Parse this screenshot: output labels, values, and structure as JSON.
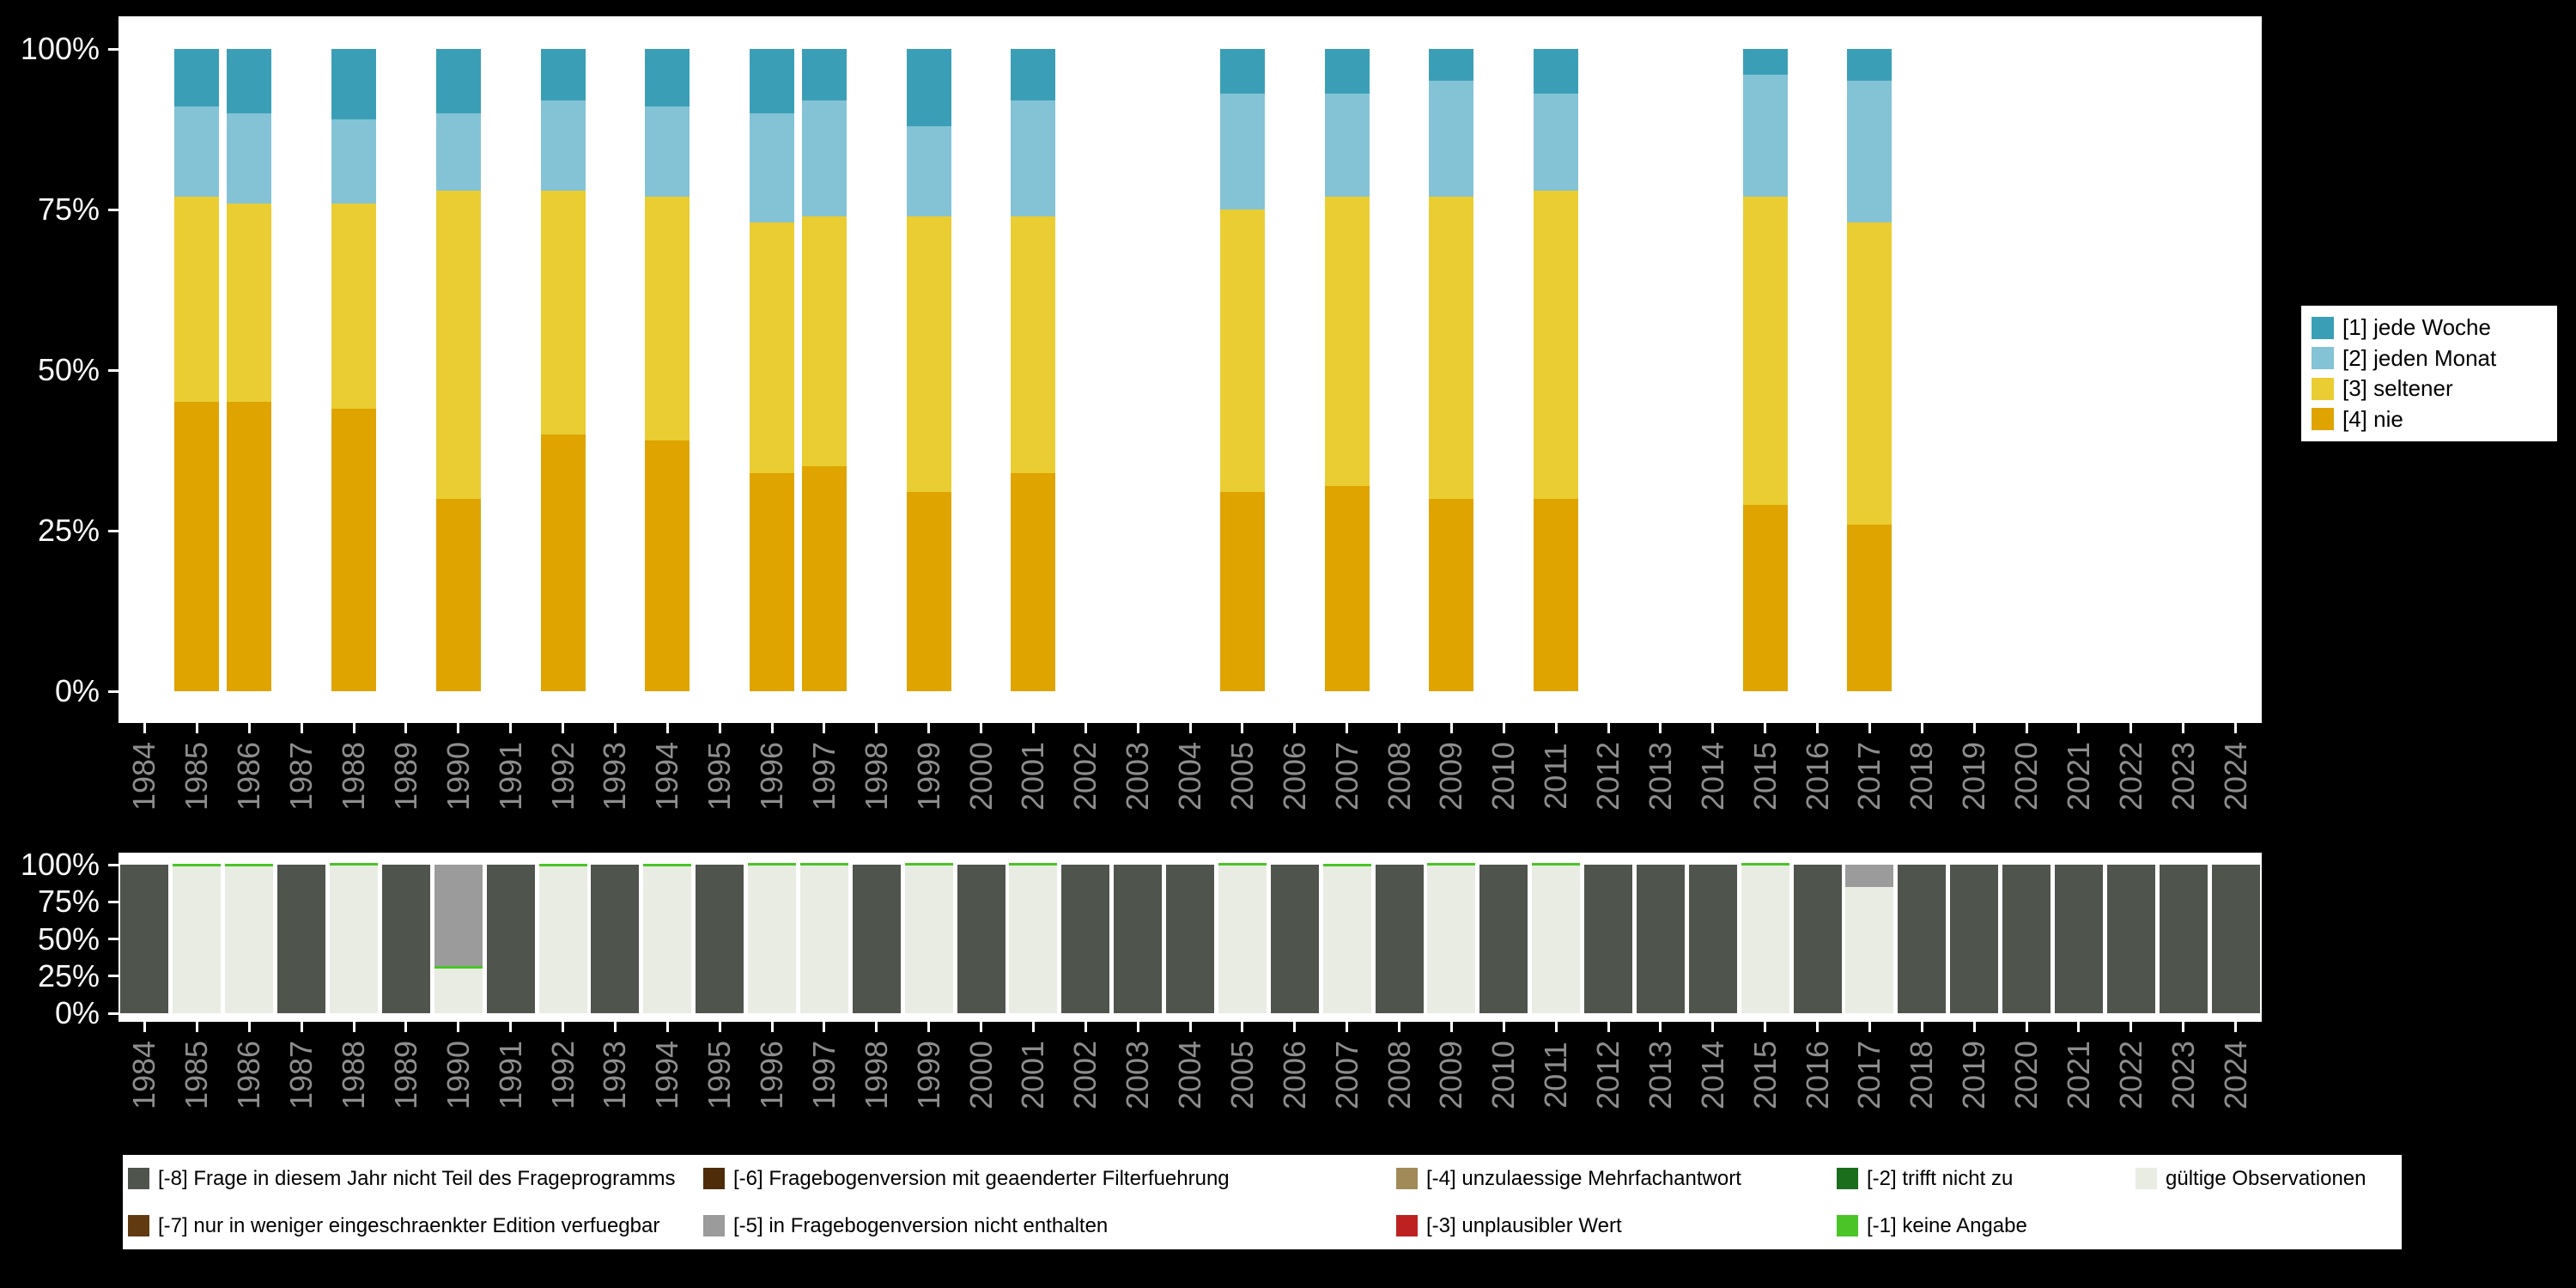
{
  "page": {
    "background": "#000000",
    "plot_background": "#ffffff"
  },
  "chart_data": [
    {
      "id": "frequency",
      "type": "bar",
      "stacked": true,
      "unit": "percent",
      "title": "",
      "categories": [
        "1984",
        "1985",
        "1986",
        "1987",
        "1988",
        "1989",
        "1990",
        "1991",
        "1992",
        "1993",
        "1994",
        "1995",
        "1996",
        "1997",
        "1998",
        "1999",
        "2000",
        "2001",
        "2002",
        "2003",
        "2004",
        "2005",
        "2006",
        "2007",
        "2008",
        "2009",
        "2010",
        "2011",
        "2012",
        "2013",
        "2014",
        "2015",
        "2016",
        "2017",
        "2018",
        "2019",
        "2020",
        "2021",
        "2022",
        "2023",
        "2024"
      ],
      "y_ticks": [
        0,
        25,
        50,
        75,
        100
      ],
      "y_tick_labels": [
        "0%",
        "25%",
        "50%",
        "75%",
        "100%"
      ],
      "ylim": [
        0,
        100
      ],
      "grid": false,
      "series": [
        {
          "name": "[4] nie",
          "color": "#dfa400",
          "values": {
            "1985": 45,
            "1986": 45,
            "1988": 44,
            "1990": 30,
            "1992": 40,
            "1994": 39,
            "1996": 34,
            "1997": 35,
            "1999": 31,
            "2001": 34,
            "2005": 31,
            "2007": 32,
            "2009": 30,
            "2011": 30,
            "2015": 29,
            "2017": 26
          }
        },
        {
          "name": "[3] seltener",
          "color": "#e9cd33",
          "values": {
            "1985": 32,
            "1986": 31,
            "1988": 32,
            "1990": 48,
            "1992": 38,
            "1994": 38,
            "1996": 39,
            "1997": 39,
            "1999": 43,
            "2001": 40,
            "2005": 44,
            "2007": 45,
            "2009": 47,
            "2011": 48,
            "2015": 48,
            "2017": 47
          }
        },
        {
          "name": "[2] jeden Monat",
          "color": "#83c3d5",
          "values": {
            "1985": 14,
            "1986": 14,
            "1988": 13,
            "1990": 12,
            "1992": 14,
            "1994": 14,
            "1996": 17,
            "1997": 18,
            "1999": 14,
            "2001": 18,
            "2005": 18,
            "2007": 16,
            "2009": 18,
            "2011": 15,
            "2015": 19,
            "2017": 22
          }
        },
        {
          "name": "[1] jede Woche",
          "color": "#3a9fb6",
          "values": {
            "1985": 9,
            "1986": 10,
            "1988": 11,
            "1990": 10,
            "1992": 8,
            "1994": 9,
            "1996": 10,
            "1997": 8,
            "1999": 12,
            "2001": 8,
            "2005": 7,
            "2007": 7,
            "2009": 5,
            "2011": 7,
            "2015": 4,
            "2017": 5
          }
        }
      ],
      "legend": {
        "position": "right",
        "items": [
          "[1] jede Woche",
          "[2] jeden Monat",
          "[3] seltener",
          "[4] nie"
        ]
      }
    },
    {
      "id": "missings",
      "type": "bar",
      "stacked": true,
      "unit": "percent",
      "title": "",
      "categories": [
        "1984",
        "1985",
        "1986",
        "1987",
        "1988",
        "1989",
        "1990",
        "1991",
        "1992",
        "1993",
        "1994",
        "1995",
        "1996",
        "1997",
        "1998",
        "1999",
        "2000",
        "2001",
        "2002",
        "2003",
        "2004",
        "2005",
        "2006",
        "2007",
        "2008",
        "2009",
        "2010",
        "2011",
        "2012",
        "2013",
        "2014",
        "2015",
        "2016",
        "2017",
        "2018",
        "2019",
        "2020",
        "2021",
        "2022",
        "2023",
        "2024"
      ],
      "y_ticks": [
        0,
        25,
        50,
        75,
        100
      ],
      "y_tick_labels": [
        "0%",
        "25%",
        "50%",
        "75%",
        "100%"
      ],
      "ylim": [
        0,
        100
      ],
      "grid": false,
      "series": [
        {
          "name": "gültige Observationen",
          "color": "#e9ece3",
          "values": {
            "1985": 99,
            "1986": 99,
            "1988": 99.5,
            "1990": 30,
            "1992": 99,
            "1994": 99,
            "1996": 99.5,
            "1997": 99.5,
            "1999": 99.5,
            "2001": 99.5,
            "2005": 99.5,
            "2007": 99,
            "2009": 99.5,
            "2011": 99.5,
            "2015": 99.5,
            "2017": 85
          }
        },
        {
          "name": "[-1] keine Angabe",
          "color": "#4bc427",
          "values": {
            "1985": 1,
            "1986": 1,
            "1988": 0.5,
            "1990": 2,
            "1992": 1,
            "1994": 1,
            "1996": 0.5,
            "1997": 0.5,
            "1999": 0.5,
            "2001": 0.5,
            "2005": 0.5,
            "2007": 1,
            "2009": 0.5,
            "2011": 0.5,
            "2015": 0.5
          }
        },
        {
          "name": "[-2] trifft nicht zu",
          "color": "#1b6e1b",
          "values": {}
        },
        {
          "name": "[-3] unplausibler Wert",
          "color": "#bd2121",
          "values": {}
        },
        {
          "name": "[-4] unzulaessige Mehrfachantwort",
          "color": "#a18a58",
          "values": {}
        },
        {
          "name": "[-5] in Fragebogenversion nicht enthalten",
          "color": "#9b9b9b",
          "values": {
            "1990": 68,
            "2017": 15
          }
        },
        {
          "name": "[-6] Fragebogenversion mit geaenderter Filterfuehrung",
          "color": "#4e2c0a",
          "values": {}
        },
        {
          "name": "[-7] nur in weniger eingeschraenkter Edition verfuegbar",
          "color": "#613a12",
          "values": {}
        },
        {
          "name": "[-8] Frage in diesem Jahr nicht Teil des Frageprogramms",
          "color": "#4f544c",
          "values": {
            "1984": 100,
            "1987": 100,
            "1989": 100,
            "1991": 100,
            "1993": 100,
            "1995": 100,
            "1998": 100,
            "2000": 100,
            "2002": 100,
            "2003": 100,
            "2004": 100,
            "2006": 100,
            "2008": 100,
            "2010": 100,
            "2012": 100,
            "2013": 100,
            "2014": 100,
            "2016": 100,
            "2018": 100,
            "2019": 100,
            "2020": 100,
            "2021": 100,
            "2022": 100,
            "2023": 100,
            "2024": 100
          }
        }
      ],
      "legend": {
        "position": "bottom",
        "order": [
          "[-8] Frage in diesem Jahr nicht Teil des Frageprogramms",
          "[-7] nur in weniger eingeschraenkter Edition verfuegbar",
          "[-6] Fragebogenversion mit geaenderter Filterfuehrung",
          "[-5] in Fragebogenversion nicht enthalten",
          "[-4] unzulaessige Mehrfachantwort",
          "[-3] unplausibler Wert",
          "[-2] trifft nicht zu",
          "[-1] keine Angabe",
          "gültige Observationen"
        ]
      }
    }
  ]
}
